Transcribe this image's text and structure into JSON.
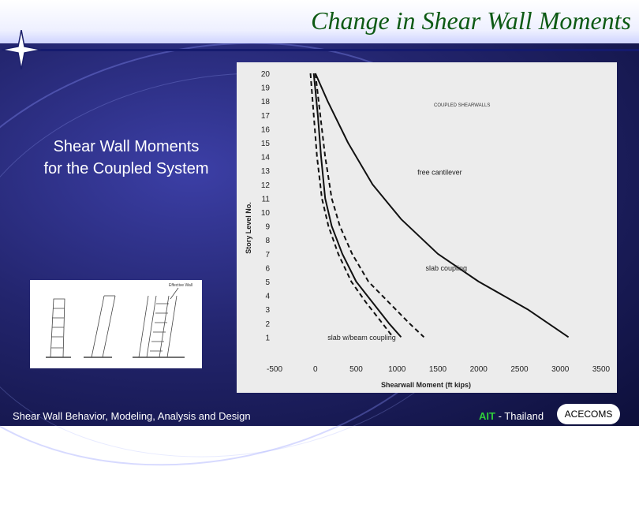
{
  "slide": {
    "title": "Change in Shear Wall Moments",
    "caption_line1": "Shear Wall Moments",
    "caption_line2": "for the Coupled System"
  },
  "footer": {
    "left": "Shear Wall Behavior, Modeling, Analysis and Design",
    "ait": "AIT",
    "ait_rest": " - Thailand",
    "badge": "ACECOMS"
  },
  "thumbnail": {
    "label": "Effective Wall"
  },
  "chart_data": {
    "type": "line",
    "title": "",
    "corner_note": "COUPLED SHEARWALLS",
    "xlabel": "Shearwall Moment (ft kips)",
    "ylabel": "Story Level No.",
    "xlim": [
      -500,
      3500
    ],
    "ylim": [
      0,
      20
    ],
    "x_ticks": [
      "-500",
      "0",
      "500",
      "1000",
      "1500",
      "2000",
      "2500",
      "3000",
      "3500"
    ],
    "y_ticks": [
      "1",
      "2",
      "3",
      "4",
      "5",
      "6",
      "7",
      "8",
      "9",
      "10",
      "11",
      "12",
      "13",
      "14",
      "15",
      "16",
      "17",
      "18",
      "19",
      "20"
    ],
    "series": [
      {
        "name": "free cantilever",
        "dash": "solid",
        "x": [
          0,
          150,
          400,
          700,
          1050,
          1500,
          2000,
          2600,
          3100
        ],
        "y": [
          20,
          18,
          15,
          12,
          9.5,
          7,
          5,
          3,
          1
        ]
      },
      {
        "name": "slab coupling",
        "dash": "dashed",
        "x": [
          0,
          60,
          120,
          200,
          300,
          450,
          650,
          900,
          1150,
          1330
        ],
        "y": [
          20,
          17,
          14,
          11,
          9,
          7,
          5,
          3.5,
          2,
          1
        ]
      },
      {
        "name": "slab w/beam coupling",
        "dash": "solid",
        "x": [
          -20,
          30,
          70,
          120,
          200,
          330,
          500,
          700,
          900,
          1050
        ],
        "y": [
          20,
          17,
          14,
          11,
          9,
          7,
          5,
          3.5,
          2,
          1
        ]
      },
      {
        "name": "",
        "dash": "dashed",
        "x": [
          -60,
          -20,
          20,
          80,
          160,
          280,
          440,
          620,
          820,
          950
        ],
        "y": [
          20,
          17,
          14,
          11,
          9,
          7,
          5,
          3.5,
          2,
          1
        ]
      }
    ],
    "annotations": [
      {
        "text": "free cantilever",
        "x": 1250,
        "y": 12.7
      },
      {
        "text": "slab coupling",
        "x": 1350,
        "y": 5.8
      },
      {
        "text": "slab w/beam coupling",
        "x": 150,
        "y": 0.8
      }
    ],
    "grid": false
  }
}
